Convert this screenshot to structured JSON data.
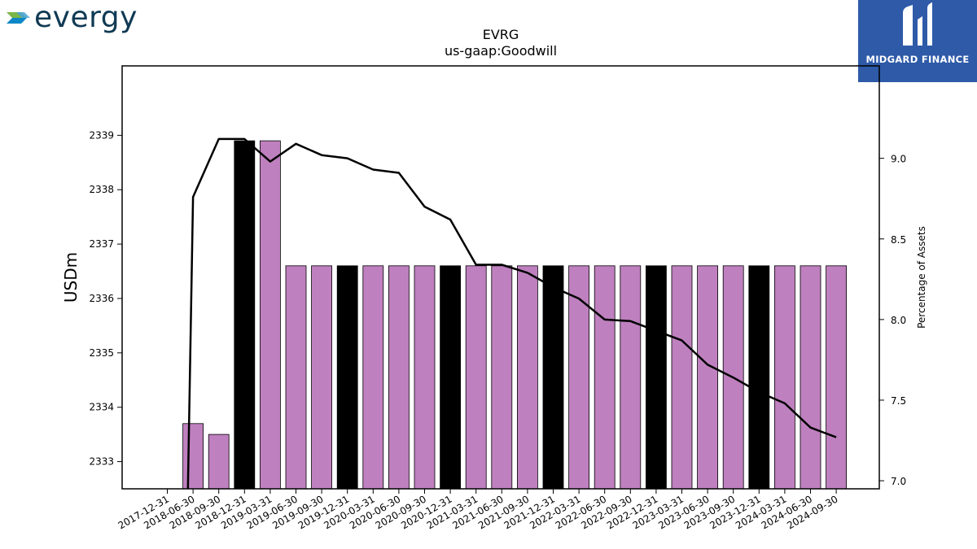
{
  "brand": {
    "name": "evergy",
    "icon": "evergy-chevron-logo"
  },
  "badge": {
    "name": "MIDGARD FINANCE",
    "icon": "midgard-monogram-logo"
  },
  "chart_data": {
    "type": "bar",
    "title": "EVRG",
    "subtitle": "us-gaap:Goodwill",
    "ylabel": "USDm",
    "y2label": "Percentage of Assets",
    "categories": [
      "2017-12-31",
      "2018-06-30",
      "2018-09-30",
      "2018-12-31",
      "2019-03-31",
      "2019-06-30",
      "2019-09-30",
      "2019-12-31",
      "2020-03-31",
      "2020-06-30",
      "2020-09-30",
      "2020-12-31",
      "2021-03-31",
      "2021-06-30",
      "2021-09-30",
      "2021-12-31",
      "2022-03-31",
      "2022-06-30",
      "2022-09-30",
      "2022-12-31",
      "2023-03-31",
      "2023-06-30",
      "2023-09-30",
      "2023-12-31",
      "2024-03-31",
      "2024-06-30",
      "2024-09-30"
    ],
    "series": [
      {
        "type": "bar",
        "values": [
          null,
          2333.7,
          2333.5,
          2338.9,
          2338.9,
          2336.6,
          2336.6,
          2336.6,
          2336.6,
          2336.6,
          2336.6,
          2336.6,
          2336.6,
          2336.6,
          2336.6,
          2336.6,
          2336.6,
          2336.6,
          2336.6,
          2336.6,
          2336.6,
          2336.6,
          2336.6,
          2336.6,
          2336.6,
          2336.6,
          2336.6
        ]
      },
      {
        "type": "line",
        "axis": "right",
        "values": [
          null,
          8.76,
          9.12,
          9.12,
          8.98,
          9.09,
          9.02,
          9.0,
          8.93,
          8.91,
          8.7,
          8.62,
          8.34,
          8.34,
          8.29,
          8.2,
          8.13,
          8.0,
          7.99,
          7.93,
          7.87,
          7.72,
          7.64,
          7.55,
          7.48,
          7.33,
          7.27
        ]
      }
    ],
    "bar_colors": {
      "quarter": "#bf80bf",
      "year_end": "#000000"
    },
    "line_color": "#000000",
    "ylim": [
      2332.5,
      2340.0
    ],
    "y2lim": [
      6.95,
      9.48
    ],
    "yticks": [
      2333,
      2334,
      2335,
      2336,
      2337,
      2338,
      2339
    ],
    "y2ticks": [
      7.0,
      7.5,
      8.0,
      8.5,
      9.0
    ],
    "grid": false,
    "legend": "none"
  }
}
